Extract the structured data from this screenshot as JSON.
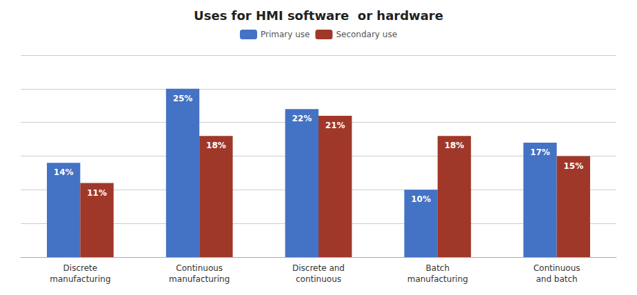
{
  "chart_data": {
    "type": "bar",
    "title": "Uses for HMI software  or hardware",
    "categories": [
      "Discrete\nmanufacturing",
      "Continuous\nmanufacturing",
      "Discrete and\ncontinuous",
      "Batch\nmanufacturing",
      "Continuous\nand batch"
    ],
    "series": [
      {
        "name": "Primary use",
        "color": "#4472C4",
        "values": [
          14,
          25,
          22,
          10,
          17
        ],
        "value_labels": [
          "14%",
          "25%",
          "22%",
          "10%",
          "17%"
        ]
      },
      {
        "name": "Secondary use",
        "color": "#A0382A",
        "values": [
          11,
          18,
          21,
          18,
          15
        ],
        "value_labels": [
          "11%",
          "18%",
          "21%",
          "18%",
          "15%"
        ]
      }
    ],
    "ylim": [
      0,
      30
    ],
    "yticks": [
      0,
      5,
      10,
      15,
      20,
      25,
      30
    ],
    "grid": true,
    "legend": "top",
    "data_labels": true,
    "tick_labels": "x"
  }
}
